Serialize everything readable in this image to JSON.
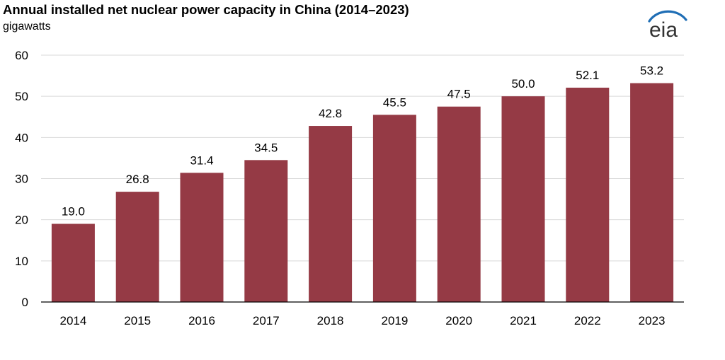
{
  "header": {
    "title": "Annual installed net nuclear power capacity in China (2014–2023)",
    "subtitle": "gigawatts",
    "logo_text": "eia"
  },
  "colors": {
    "bar": "#953a45",
    "grid": "#d9d9d9",
    "axis": "#000000",
    "logo_blue": "#1f6eb5"
  },
  "chart_data": {
    "type": "bar",
    "title": "Annual installed net nuclear power capacity in China (2014–2023)",
    "ylabel": "gigawatts",
    "xlabel": "",
    "categories": [
      "2014",
      "2015",
      "2016",
      "2017",
      "2018",
      "2019",
      "2020",
      "2021",
      "2022",
      "2023"
    ],
    "values": [
      19.0,
      26.8,
      31.4,
      34.5,
      42.8,
      45.5,
      47.5,
      50.0,
      52.1,
      53.2
    ],
    "value_labels": [
      "19.0",
      "26.8",
      "31.4",
      "34.5",
      "42.8",
      "45.5",
      "47.5",
      "50.0",
      "52.1",
      "53.2"
    ],
    "ylim": [
      0,
      60
    ],
    "yticks": [
      0,
      10,
      20,
      30,
      40,
      50,
      60
    ],
    "grid": true,
    "legend": "none"
  }
}
